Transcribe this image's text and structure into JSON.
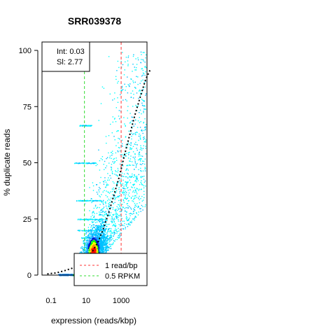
{
  "chart_data": {
    "type": "scatter",
    "title": "SRR039378",
    "xlabel": "expression (reads/kbp)",
    "ylabel": "% duplicate reads",
    "x_scale": "log10",
    "xlim": [
      0.03,
      30000
    ],
    "ylim": [
      0,
      100
    ],
    "x_ticks": [
      {
        "value": 0.1,
        "label": "0.1"
      },
      {
        "value": 10,
        "label": "10"
      },
      {
        "value": 1000,
        "label": "1000"
      }
    ],
    "y_ticks": [
      {
        "value": 0,
        "label": "0"
      },
      {
        "value": 25,
        "label": "25"
      },
      {
        "value": 50,
        "label": "50"
      },
      {
        "value": 75,
        "label": "75"
      },
      {
        "value": 100,
        "label": "100"
      }
    ],
    "fit": {
      "intercept": 0.03,
      "slope": 2.77
    },
    "fit_box": {
      "int_label": "Int: 0.03",
      "sl_label": "Sl: 2.77"
    },
    "fit_curve": [
      [
        0.06,
        0.5
      ],
      [
        0.2,
        1
      ],
      [
        0.6,
        2
      ],
      [
        1.5,
        3
      ],
      [
        3,
        4
      ],
      [
        6,
        6
      ],
      [
        12,
        8
      ],
      [
        25,
        11
      ],
      [
        50,
        15
      ],
      [
        100,
        21
      ],
      [
        200,
        28
      ],
      [
        400,
        36
      ],
      [
        800,
        44
      ],
      [
        1500,
        53
      ],
      [
        3000,
        62
      ],
      [
        6000,
        71
      ],
      [
        12000,
        79
      ],
      [
        25000,
        87
      ],
      [
        50000,
        92
      ]
    ],
    "vlines": [
      {
        "name": "1 read/bp",
        "x": 1000,
        "color": "#ff3333"
      },
      {
        "name": "0.5 RPKM",
        "x": 8,
        "color": "#33dd33"
      }
    ],
    "density_colors": [
      "#00ffff",
      "#00bfff",
      "#1e90ff",
      "#0000cd",
      "#00ff00",
      "#ffff00",
      "#ff8c00",
      "#ff0000"
    ],
    "density_note": "point cloud of genes coloured by local density; dense core near x 20-100, y 5-20"
  }
}
